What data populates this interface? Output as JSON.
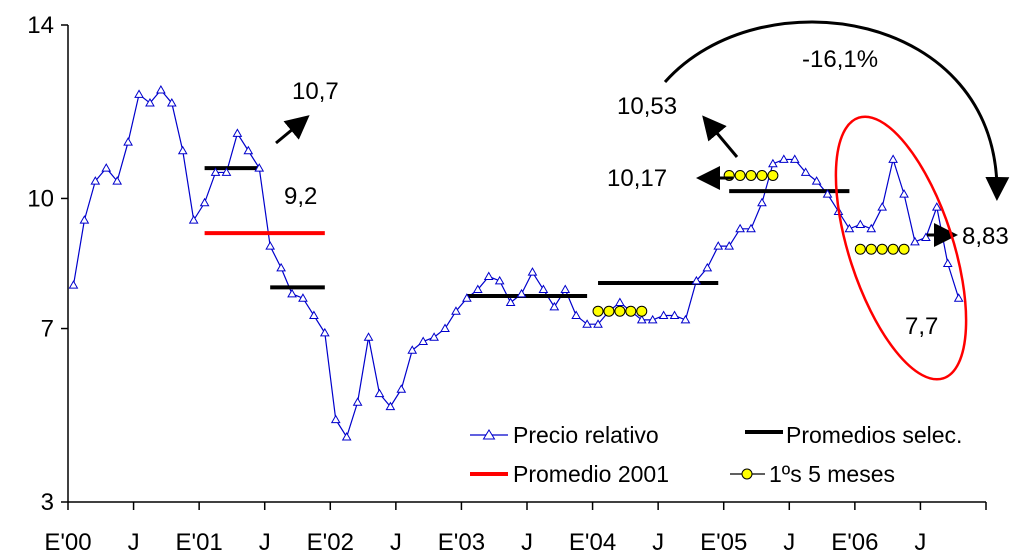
{
  "chart_data": {
    "type": "line",
    "title": "",
    "xlabel": "",
    "ylabel": "",
    "ylim": [
      3,
      14
    ],
    "y_ticks": [
      "3",
      "7",
      "10",
      "14"
    ],
    "y_tick_values": [
      3,
      7,
      10,
      14
    ],
    "x_tick_labels": [
      "E'00",
      "J",
      "E'01",
      "J",
      "E'02",
      "J",
      "E'03",
      "J",
      "E'04",
      "J",
      "E'05",
      "J",
      "E'06",
      "J"
    ],
    "grid": false,
    "legend_position": "bottom-right",
    "series": [
      {
        "name": "Precio relativo",
        "color": "#0000cc",
        "marker": "triangle-open",
        "values": [
          8.0,
          9.5,
          10.4,
          10.7,
          10.4,
          11.3,
          12.4,
          12.2,
          12.5,
          12.2,
          11.1,
          9.5,
          9.9,
          10.6,
          10.6,
          11.5,
          11.1,
          10.7,
          8.9,
          8.4,
          7.8,
          7.7,
          7.3,
          6.9,
          4.9,
          4.5,
          5.3,
          6.8,
          5.5,
          5.2,
          5.6,
          6.5,
          6.7,
          6.8,
          7.0,
          7.4,
          7.7,
          7.9,
          8.2,
          8.1,
          7.6,
          7.8,
          8.3,
          7.9,
          7.5,
          7.9,
          7.3,
          7.1,
          7.1,
          7.4,
          7.6,
          7.4,
          7.2,
          7.2,
          7.3,
          7.3,
          7.2,
          8.1,
          8.4,
          8.9,
          8.9,
          9.3,
          9.3,
          9.9,
          10.8,
          10.9,
          10.9,
          10.6,
          10.4,
          10.1,
          9.7,
          9.3,
          9.4,
          9.3,
          9.8,
          10.9,
          10.1,
          9.0,
          9.1,
          9.8,
          8.5,
          7.7
        ]
      },
      {
        "name": "Promedios selec.",
        "color": "#000000",
        "segments": [
          {
            "from": 12,
            "to": 17,
            "value": 10.7
          },
          {
            "from": 18,
            "to": 23,
            "value": 7.95
          },
          {
            "from": 36,
            "to": 47,
            "value": 7.75
          },
          {
            "from": 48,
            "to": 59,
            "value": 8.05
          },
          {
            "from": 60,
            "to": 71,
            "value": 10.17
          }
        ]
      },
      {
        "name": "Promedio 2001",
        "color": "#ff0000",
        "segments": [
          {
            "from": 12,
            "to": 23,
            "value": 9.2
          }
        ]
      },
      {
        "name": "1ºs 5 meses",
        "color": "#ffff00",
        "marker": "circle",
        "groups": [
          {
            "start": 48,
            "values": [
              7.4,
              7.4,
              7.4,
              7.4,
              7.4
            ]
          },
          {
            "start": 60,
            "values": [
              10.53,
              10.53,
              10.53,
              10.53,
              10.53
            ]
          },
          {
            "start": 72,
            "values": [
              8.83,
              8.83,
              8.83,
              8.83,
              8.83
            ]
          }
        ]
      }
    ],
    "annotations": [
      "10,7",
      "9,2",
      "10,53",
      "10,17",
      "-16,1%",
      "8,83",
      "7,7"
    ]
  }
}
